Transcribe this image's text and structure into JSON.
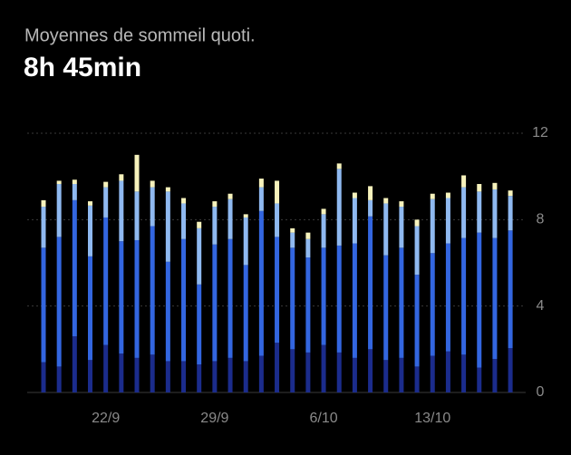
{
  "header": {
    "title": "Moyennes de sommeil quoti.",
    "value": "8h 45min"
  },
  "chart_data": {
    "type": "bar",
    "stacked": true,
    "categories": [
      null,
      null,
      null,
      null,
      "22/9",
      null,
      null,
      null,
      null,
      null,
      null,
      "29/9",
      null,
      null,
      null,
      null,
      null,
      null,
      "6/10",
      null,
      null,
      null,
      null,
      null,
      null,
      "13/10",
      null,
      null,
      null,
      null,
      null
    ],
    "series": [
      {
        "color": "#1b2c8c",
        "values": [
          1.4,
          1.2,
          2.6,
          1.5,
          2.2,
          1.8,
          1.6,
          1.75,
          1.45,
          1.45,
          1.3,
          1.45,
          1.6,
          1.45,
          1.7,
          2.3,
          2.0,
          1.85,
          2.2,
          1.85,
          1.6,
          2.0,
          1.5,
          1.6,
          1.2,
          1.7,
          1.9,
          1.75,
          1.15,
          1.55,
          2.05
        ]
      },
      {
        "color": "#3366e0",
        "values": [
          5.3,
          6.0,
          6.3,
          4.8,
          5.9,
          5.2,
          5.45,
          5.95,
          4.6,
          5.65,
          3.7,
          5.4,
          5.5,
          4.45,
          6.7,
          4.9,
          4.7,
          4.4,
          4.5,
          4.95,
          5.3,
          6.15,
          4.85,
          5.1,
          4.25,
          4.75,
          5.0,
          5.4,
          6.25,
          5.6,
          5.45
        ]
      },
      {
        "color": "#8fb9f0",
        "values": [
          1.9,
          2.45,
          0.75,
          2.35,
          1.4,
          2.8,
          2.25,
          1.8,
          3.25,
          1.65,
          2.6,
          1.75,
          1.85,
          2.2,
          1.1,
          1.55,
          0.7,
          0.85,
          1.55,
          3.55,
          2.1,
          0.75,
          2.4,
          1.9,
          2.25,
          2.5,
          2.1,
          2.35,
          1.9,
          2.25,
          1.6
        ]
      },
      {
        "color": "#f6f2bc",
        "values": [
          0.3,
          0.15,
          0.2,
          0.2,
          0.25,
          0.3,
          1.7,
          0.3,
          0.2,
          0.25,
          0.3,
          0.25,
          0.25,
          0.15,
          0.4,
          1.05,
          0.2,
          0.3,
          0.25,
          0.25,
          0.25,
          0.65,
          0.25,
          0.25,
          0.3,
          0.25,
          0.25,
          0.55,
          0.35,
          0.3,
          0.25
        ]
      }
    ],
    "ylim": [
      0,
      12
    ],
    "yticks": [
      0,
      4,
      8,
      12
    ],
    "grid": true
  }
}
